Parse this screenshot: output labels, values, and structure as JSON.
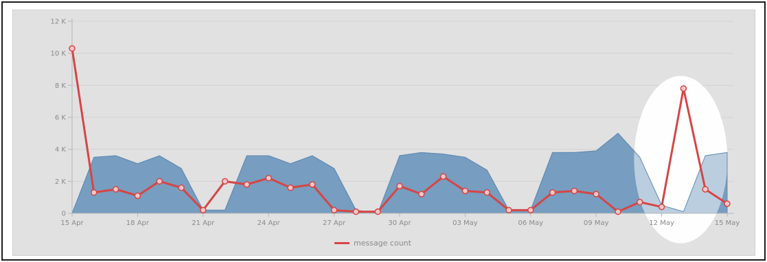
{
  "chart_data": {
    "type": "line",
    "x_ticks": [
      "15 Apr",
      "18 Apr",
      "21 Apr",
      "24 Apr",
      "27 Apr",
      "30 Apr",
      "03 May",
      "06 May",
      "09 May",
      "12 May",
      "15 May"
    ],
    "y_ticks": [
      "0",
      "2 K",
      "4 K",
      "6 K",
      "8 K",
      "10 K",
      "12 K"
    ],
    "ylim": [
      0,
      12000
    ],
    "x": [
      "15 Apr",
      "16 Apr",
      "17 Apr",
      "18 Apr",
      "19 Apr",
      "20 Apr",
      "21 Apr",
      "22 Apr",
      "23 Apr",
      "24 Apr",
      "25 Apr",
      "26 Apr",
      "27 Apr",
      "28 Apr",
      "29 Apr",
      "30 Apr",
      "01 May",
      "02 May",
      "03 May",
      "04 May",
      "05 May",
      "06 May",
      "07 May",
      "08 May",
      "09 May",
      "10 May",
      "11 May",
      "12 May",
      "13 May",
      "14 May",
      "15 May"
    ],
    "series": [
      {
        "name": "message count",
        "kind": "line",
        "color": "#d64545",
        "values": [
          10300,
          1300,
          1500,
          1100,
          2000,
          1600,
          200,
          2000,
          1800,
          2200,
          1600,
          1800,
          200,
          100,
          100,
          1700,
          1200,
          2300,
          1400,
          1300,
          200,
          200,
          1300,
          1400,
          1200,
          100,
          700,
          400,
          7800,
          1500,
          600
        ]
      },
      {
        "kind": "area",
        "color": "#7199be",
        "values": [
          0,
          3500,
          3600,
          3100,
          3600,
          2800,
          200,
          200,
          3600,
          3600,
          3100,
          3600,
          2800,
          200,
          0,
          3600,
          3800,
          3700,
          3500,
          2700,
          200,
          200,
          3800,
          3800,
          3900,
          5000,
          3500,
          500,
          100,
          3600,
          3800
        ]
      }
    ],
    "highlight": {
      "shape": "ellipse",
      "color": "#ffffff",
      "x": "13 May",
      "y": 4000
    },
    "legend_position": "bottom-center",
    "grid": true
  }
}
